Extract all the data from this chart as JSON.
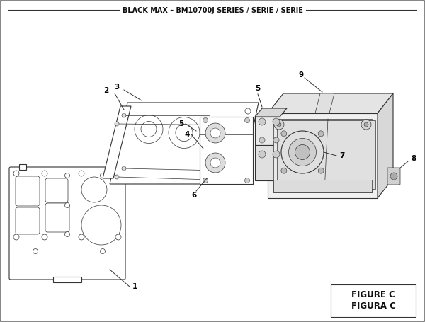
{
  "title": "BLACK MAX – BM10700J SERIES / SÉRIE / SERIE",
  "figure_label": "FIGURE C",
  "figure_label2": "FIGURA C",
  "bg_color": "#ffffff",
  "line_color": "#333333",
  "text_color": "#111111"
}
